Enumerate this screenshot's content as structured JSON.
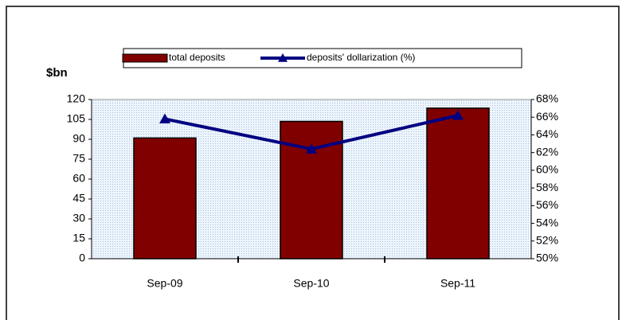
{
  "chart_data": {
    "type": "bar_line",
    "y_label": "$bn",
    "categories": [
      "Sep-09",
      "Sep-10",
      "Sep-11"
    ],
    "series": [
      {
        "name": "total deposits",
        "color": "#800000",
        "values": [
          91,
          103.5,
          113.5
        ]
      },
      {
        "name": "deposits' dollarization (%)",
        "color": "#000080",
        "axis": "y2",
        "values": [
          65.8,
          62.4,
          66.2
        ]
      }
    ],
    "ylim": [
      0,
      120
    ],
    "yticks": [
      0,
      15,
      30,
      45,
      60,
      75,
      90,
      105,
      120
    ],
    "y2lim": [
      50,
      68
    ],
    "y2ticks": [
      {
        "value": 50,
        "label": "50%"
      },
      {
        "value": 52,
        "label": "52%"
      },
      {
        "value": 54,
        "label": "54%"
      },
      {
        "value": 56,
        "label": "56%"
      },
      {
        "value": 58,
        "label": "58%"
      },
      {
        "value": 60,
        "label": "60%"
      },
      {
        "value": 62,
        "label": "62%"
      },
      {
        "value": 64,
        "label": "64%"
      },
      {
        "value": 66,
        "label": "66%"
      },
      {
        "value": 68,
        "label": "68%"
      }
    ]
  }
}
